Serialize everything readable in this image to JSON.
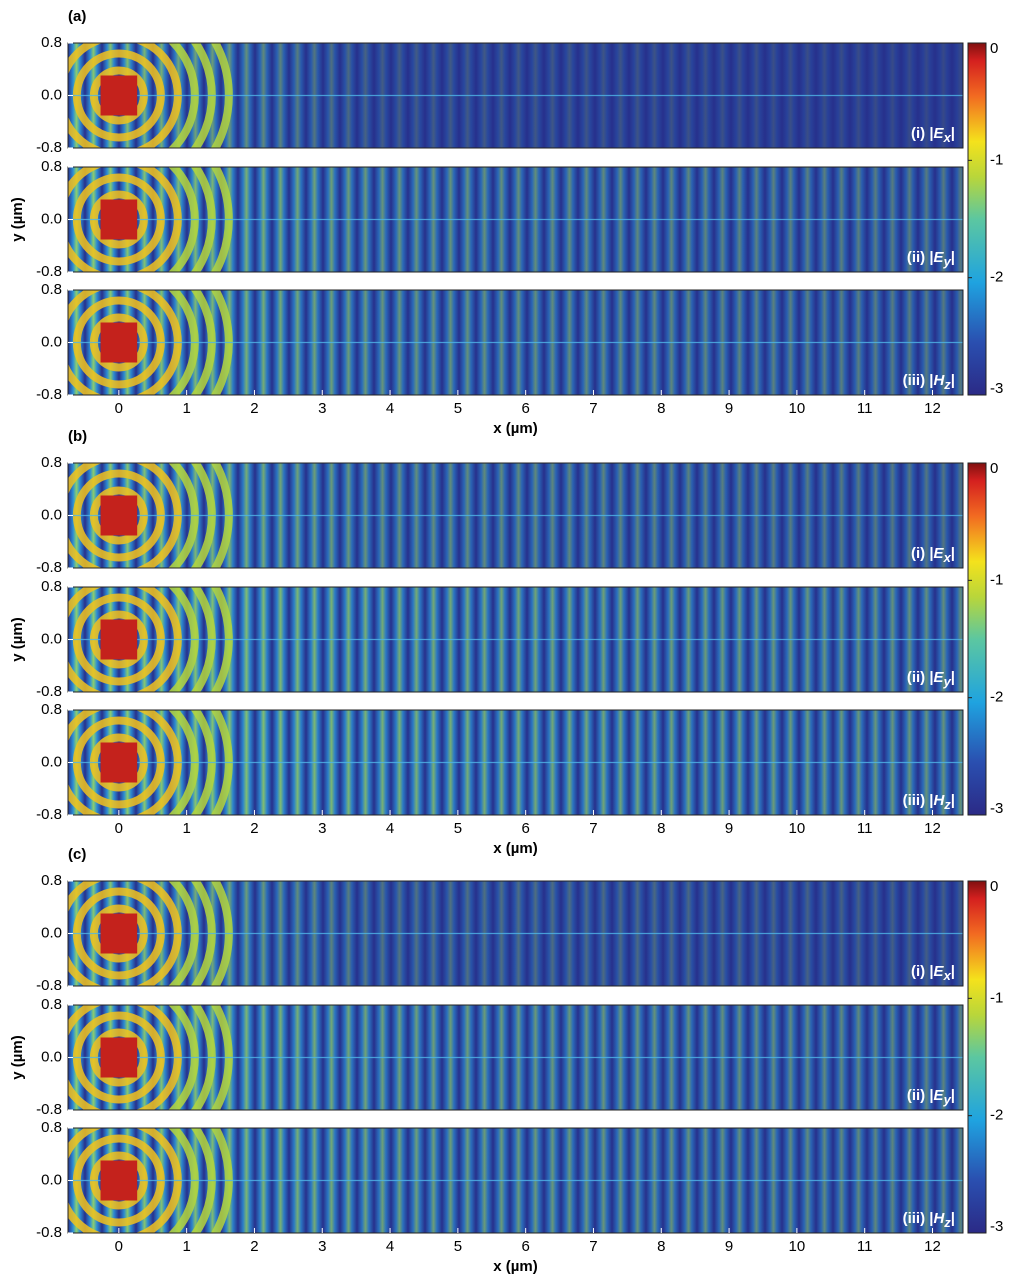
{
  "chart_data": [
    {
      "type": "heatmap",
      "label": "(a)",
      "xlabel": "x (µm)",
      "ylabel": "y (µm)",
      "xlim": [
        -0.75,
        12.45
      ],
      "xticks": [
        0,
        1,
        2,
        3,
        4,
        5,
        6,
        7,
        8,
        9,
        10,
        11,
        12
      ],
      "ylim": [
        -0.8,
        0.8
      ],
      "yticks": [
        -0.8,
        {
          "value": 0,
          "label": "0.0"
        },
        0.8
      ],
      "colorbar": {
        "lim": [
          -3,
          0
        ],
        "ticks": [
          0,
          -1,
          -2,
          -3
        ]
      },
      "panels": [
        {
          "prefix": "(i) |",
          "symbol": "E",
          "subscript": "x",
          "suffix": "|"
        },
        {
          "prefix": "(ii) |",
          "symbol": "E",
          "subscript": "y",
          "suffix": "|"
        },
        {
          "prefix": "(iii) |",
          "symbol": "H",
          "subscript": "z",
          "suffix": "|"
        }
      ]
    },
    {
      "type": "heatmap",
      "label": "(b)",
      "xlabel": "x (µm)",
      "ylabel": "y (µm)",
      "xlim": [
        -0.75,
        12.45
      ],
      "xticks": [
        0,
        1,
        2,
        3,
        4,
        5,
        6,
        7,
        8,
        9,
        10,
        11,
        12
      ],
      "ylim": [
        -0.8,
        0.8
      ],
      "yticks": [
        -0.8,
        {
          "value": 0,
          "label": "0.0"
        },
        0.8
      ],
      "colorbar": {
        "lim": [
          -3,
          0
        ],
        "ticks": [
          0,
          -1,
          -2,
          -3
        ]
      },
      "panels": [
        {
          "prefix": "(i) |",
          "symbol": "E",
          "subscript": "x",
          "suffix": "|"
        },
        {
          "prefix": "(ii) |",
          "symbol": "E",
          "subscript": "y",
          "suffix": "|"
        },
        {
          "prefix": "(iii) |",
          "symbol": "H",
          "subscript": "z",
          "suffix": "|"
        }
      ]
    },
    {
      "type": "heatmap",
      "label": "(c)",
      "xlabel": "x (µm)",
      "ylabel": "y (µm)",
      "xlim": [
        -0.75,
        12.45
      ],
      "xticks": [
        0,
        1,
        2,
        3,
        4,
        5,
        6,
        7,
        8,
        9,
        10,
        11,
        12
      ],
      "ylim": [
        -0.8,
        0.8
      ],
      "yticks": [
        -0.8,
        {
          "value": 0,
          "label": "0.0"
        },
        0.8
      ],
      "colorbar": {
        "lim": [
          -3,
          0
        ],
        "ticks": [
          0,
          -1,
          -2,
          -3
        ]
      },
      "panels": [
        {
          "prefix": "(i) |",
          "symbol": "E",
          "subscript": "x",
          "suffix": "|"
        },
        {
          "prefix": "(ii) |",
          "symbol": "E",
          "subscript": "y",
          "suffix": "|"
        },
        {
          "prefix": "(iii) |",
          "symbol": "H",
          "subscript": "z",
          "suffix": "|"
        }
      ]
    }
  ]
}
